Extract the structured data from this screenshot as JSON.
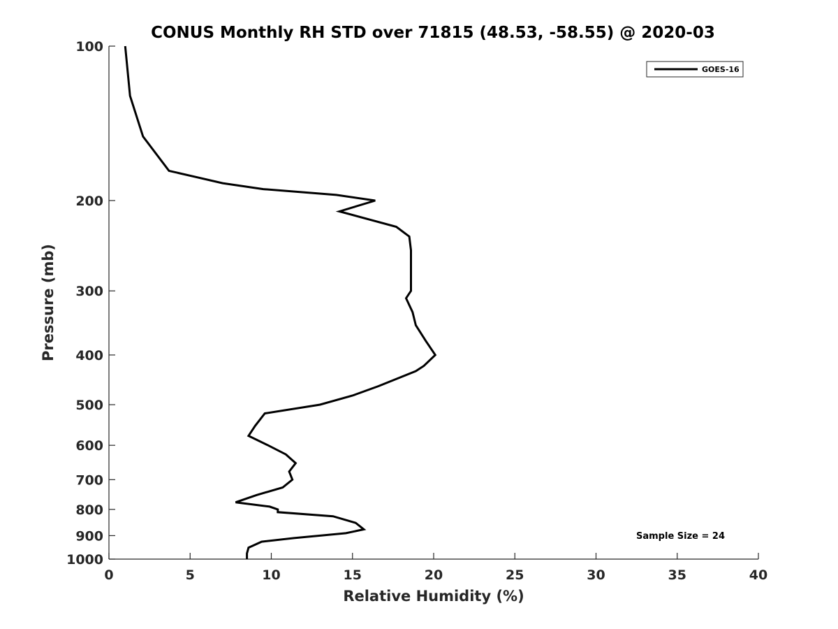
{
  "chart_data": {
    "type": "line",
    "title": "CONUS Monthly RH STD over 71815 (48.53, -58.55) @ 2020-03",
    "xlabel": "Relative Humidity (%)",
    "ylabel": "Pressure (mb)",
    "xlim": [
      0,
      40
    ],
    "ylim": [
      1000,
      100
    ],
    "y_scale": "log",
    "y_reversed": true,
    "grid": false,
    "legend_position": "top-right",
    "x_ticks": [
      0,
      5,
      10,
      15,
      20,
      25,
      30,
      35,
      40
    ],
    "y_ticks": [
      100,
      200,
      300,
      400,
      500,
      600,
      700,
      800,
      900,
      1000
    ],
    "series": [
      {
        "name": "GOES-16",
        "color": "#000000",
        "points": [
          [
            1.0,
            100
          ],
          [
            1.3,
            125
          ],
          [
            2.1,
            150
          ],
          [
            3.7,
            175
          ],
          [
            7.0,
            185
          ],
          [
            9.5,
            190
          ],
          [
            14.0,
            195
          ],
          [
            16.4,
            200
          ],
          [
            14.2,
            210
          ],
          [
            17.7,
            225
          ],
          [
            18.5,
            235
          ],
          [
            18.6,
            250
          ],
          [
            18.6,
            270
          ],
          [
            18.6,
            300
          ],
          [
            18.3,
            310
          ],
          [
            18.7,
            330
          ],
          [
            18.9,
            350
          ],
          [
            19.5,
            375
          ],
          [
            20.1,
            400
          ],
          [
            19.4,
            420
          ],
          [
            18.9,
            430
          ],
          [
            16.6,
            460
          ],
          [
            15.0,
            480
          ],
          [
            13.0,
            500
          ],
          [
            9.6,
            520
          ],
          [
            9.0,
            550
          ],
          [
            8.6,
            575
          ],
          [
            9.8,
            600
          ],
          [
            10.9,
            625
          ],
          [
            11.5,
            650
          ],
          [
            11.1,
            675
          ],
          [
            11.3,
            700
          ],
          [
            10.7,
            725
          ],
          [
            9.1,
            750
          ],
          [
            7.8,
            775
          ],
          [
            9.9,
            790
          ],
          [
            10.4,
            800
          ],
          [
            10.4,
            810
          ],
          [
            13.8,
            825
          ],
          [
            15.2,
            850
          ],
          [
            15.7,
            875
          ],
          [
            14.6,
            890
          ],
          [
            11.4,
            910
          ],
          [
            9.4,
            925
          ],
          [
            8.6,
            950
          ],
          [
            8.5,
            975
          ],
          [
            8.5,
            1000
          ]
        ]
      }
    ],
    "annotations": [
      "Sample Size = 24"
    ]
  }
}
